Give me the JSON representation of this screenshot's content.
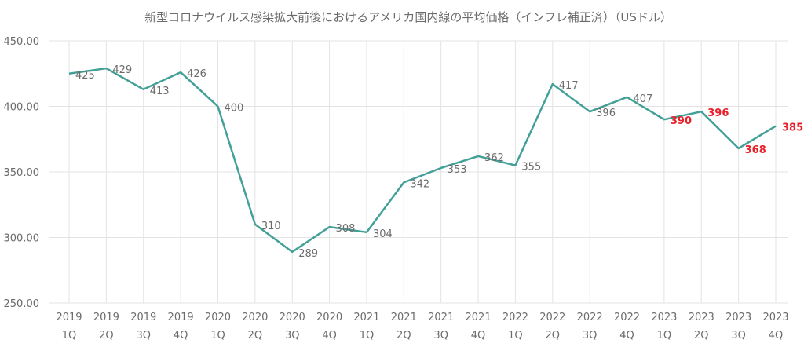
{
  "chart_data": {
    "type": "line",
    "title": "新型コロナウイルス感染拡大前後におけるアメリカ国内線の平均価格（インフレ補正済）（USドル）",
    "xlabel": "",
    "ylabel": "",
    "ylim": [
      250,
      450
    ],
    "yticks": [
      "250.00",
      "300.00",
      "350.00",
      "400.00",
      "450.00"
    ],
    "grid": true,
    "categories": [
      [
        "2019",
        "1Q"
      ],
      [
        "2019",
        "2Q"
      ],
      [
        "2019",
        "3Q"
      ],
      [
        "2019",
        "4Q"
      ],
      [
        "2020",
        "1Q"
      ],
      [
        "2020",
        "2Q"
      ],
      [
        "2020",
        "3Q"
      ],
      [
        "2020",
        "4Q"
      ],
      [
        "2021",
        "1Q"
      ],
      [
        "2021",
        "2Q"
      ],
      [
        "2021",
        "3Q"
      ],
      [
        "2021",
        "4Q"
      ],
      [
        "2022",
        "1Q"
      ],
      [
        "2022",
        "2Q"
      ],
      [
        "2022",
        "3Q"
      ],
      [
        "2022",
        "4Q"
      ],
      [
        "2023",
        "1Q"
      ],
      [
        "2023",
        "2Q"
      ],
      [
        "2023",
        "3Q"
      ],
      [
        "2023",
        "4Q"
      ]
    ],
    "series": [
      {
        "values": [
          425,
          429,
          413,
          426,
          400,
          310,
          289,
          308,
          304,
          342,
          353,
          362,
          355,
          417,
          396,
          407,
          390,
          396,
          368,
          385
        ],
        "data_labels": [
          "425",
          "429",
          "413",
          "426",
          "400",
          "310",
          "289",
          "308",
          "304",
          "342",
          "353",
          "362",
          "355",
          "417",
          "396",
          "407",
          "390",
          "396",
          "368",
          "385"
        ],
        "color": "#43a098"
      }
    ],
    "highlight_indices": [
      16,
      17,
      18,
      19
    ],
    "colors": {
      "line": "#43a098",
      "label": "#6b6b6b",
      "highlight_label": "#e8202a",
      "grid": "#e3e3e3"
    }
  }
}
